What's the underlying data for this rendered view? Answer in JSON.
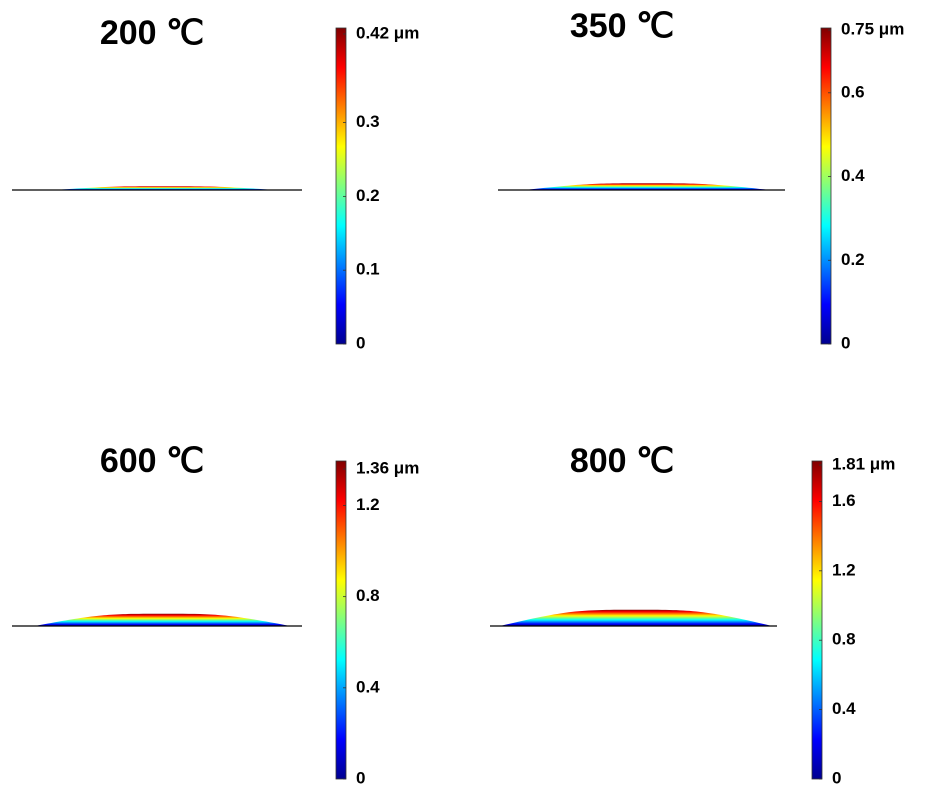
{
  "chart_data": [
    {
      "type": "droplet",
      "title": "200 ℃",
      "colormap": "jet",
      "clim": [
        0,
        0.42
      ],
      "ticks": [
        0,
        0.1,
        0.2,
        0.3,
        {
          "value": 0.42,
          "label": "0.42 μm"
        }
      ]
    },
    {
      "type": "droplet",
      "title": "350 ℃",
      "colormap": "jet",
      "clim": [
        0,
        0.75
      ],
      "ticks": [
        0,
        0.2,
        0.4,
        0.6,
        {
          "value": 0.75,
          "label": "0.75 μm"
        }
      ]
    },
    {
      "type": "droplet",
      "title": "600 ℃",
      "colormap": "jet",
      "clim": [
        0,
        1.36
      ],
      "ticks": [
        0,
        0.4,
        0.8,
        1.2,
        {
          "value": 1.36,
          "label": "1.36 μm"
        }
      ]
    },
    {
      "type": "droplet",
      "title": "800 ℃",
      "colormap": "jet",
      "clim": [
        0,
        1.81
      ],
      "ticks": [
        0,
        0.4,
        0.8,
        1.2,
        1.6,
        {
          "value": 1.81,
          "label": "1.81 μm"
        }
      ]
    }
  ]
}
